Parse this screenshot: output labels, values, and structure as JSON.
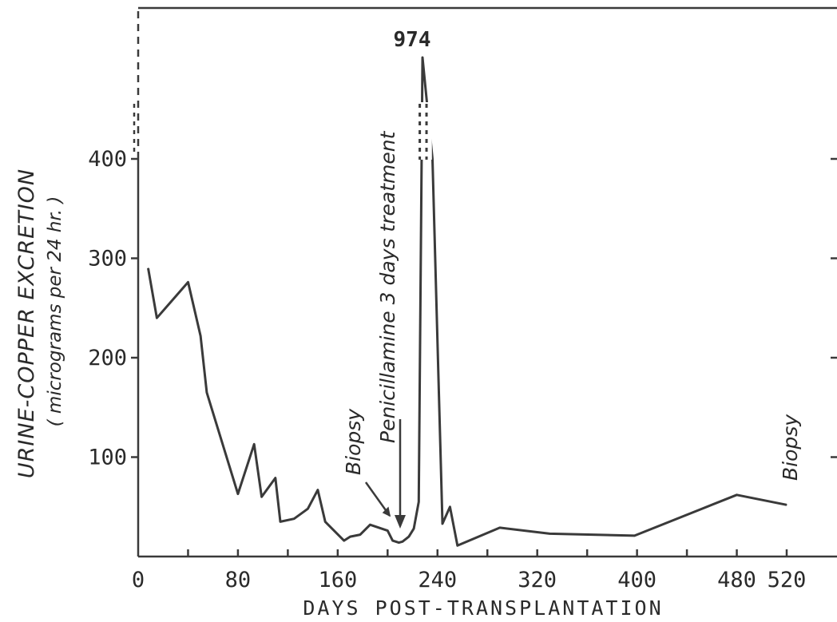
{
  "chart_data": {
    "type": "line",
    "title": "",
    "xlabel": "DAYS POST-TRANSPLANTATION",
    "ylabel_line1": "URINE-COPPER EXCRETION",
    "ylabel_line2": "( micrograms per 24 hr. )",
    "xlim": [
      0,
      540
    ],
    "ylim": [
      0,
      500
    ],
    "x_ticks": [
      0,
      80,
      160,
      240,
      320,
      400,
      480,
      520
    ],
    "y_ticks": [
      100,
      200,
      300,
      400
    ],
    "y_break_above": 400,
    "grid": false,
    "series": [
      {
        "values": [
          [
            8,
            290
          ],
          [
            15,
            240
          ],
          [
            40,
            276
          ],
          [
            50,
            222
          ],
          [
            55,
            165
          ],
          [
            80,
            63
          ],
          [
            93,
            113
          ],
          [
            99,
            60
          ],
          [
            110,
            79
          ],
          [
            114,
            35
          ],
          [
            125,
            38
          ],
          [
            136,
            48
          ],
          [
            144,
            67
          ],
          [
            150,
            35
          ],
          [
            165,
            16
          ],
          [
            170,
            20
          ],
          [
            178,
            22
          ],
          [
            186,
            32
          ],
          [
            200,
            26
          ],
          [
            204,
            16
          ],
          [
            209,
            14
          ],
          [
            212,
            15
          ],
          [
            217,
            20
          ],
          [
            221,
            28
          ],
          [
            225,
            55
          ],
          [
            228,
            974
          ],
          [
            236,
            400
          ],
          [
            244,
            33
          ],
          [
            250,
            50
          ],
          [
            256,
            11
          ],
          [
            290,
            29
          ],
          [
            330,
            23
          ],
          [
            398,
            21
          ],
          [
            480,
            62
          ],
          [
            520,
            52
          ]
        ]
      }
    ],
    "peak_label": "974",
    "annotations": [
      {
        "text": "Biopsy",
        "x": 205,
        "y": 28
      },
      {
        "text": "Penicillamine 3 days treatment",
        "x": 222,
        "y": 35
      },
      {
        "text": "Biopsy",
        "x": 520,
        "y": 52
      }
    ]
  }
}
